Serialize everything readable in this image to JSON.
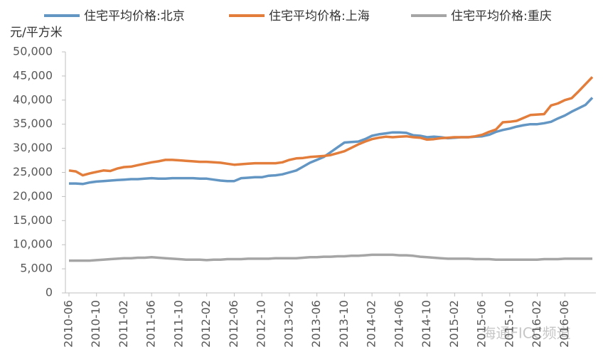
{
  "chart_data": {
    "type": "line",
    "y_label": "元/平方米",
    "watermark": "海通FICC频道",
    "categories": [
      "2010-06",
      null,
      null,
      null,
      "2010-10",
      null,
      null,
      null,
      "2011-02",
      null,
      null,
      null,
      "2011-06",
      null,
      null,
      null,
      "2011-10",
      null,
      null,
      null,
      "2012-02",
      null,
      null,
      null,
      "2012-06",
      null,
      null,
      null,
      "2012-10",
      null,
      null,
      null,
      "2013-02",
      null,
      null,
      null,
      "2013-06",
      null,
      null,
      null,
      "2013-10",
      null,
      null,
      null,
      "2014-02",
      null,
      null,
      null,
      "2014-06",
      null,
      null,
      null,
      "2014-10",
      null,
      null,
      null,
      "2015-02",
      null,
      null,
      null,
      "2015-06",
      null,
      null,
      null,
      "2015-10",
      null,
      null,
      null,
      "2016-02",
      null,
      null,
      null,
      "2016-06",
      null,
      null,
      null,
      null
    ],
    "series": [
      {
        "name": "住宅平均价格:北京",
        "color": "#6496c4",
        "values": [
          22700,
          22700,
          22600,
          22900,
          23100,
          23200,
          23300,
          23400,
          23500,
          23600,
          23600,
          23700,
          23800,
          23700,
          23700,
          23800,
          23800,
          23800,
          23800,
          23700,
          23700,
          23500,
          23300,
          23200,
          23200,
          23800,
          23900,
          24000,
          24000,
          24300,
          24400,
          24600,
          25000,
          25400,
          26200,
          27000,
          27600,
          28200,
          29200,
          30200,
          31200,
          31300,
          31400,
          31900,
          32600,
          32900,
          33100,
          33300,
          33300,
          33200,
          32700,
          32600,
          32300,
          32400,
          32300,
          32100,
          32200,
          32300,
          32300,
          32400,
          32500,
          32800,
          33400,
          33800,
          34100,
          34500,
          34800,
          35000,
          35000,
          35200,
          35500,
          36200,
          36800,
          37600,
          38300,
          39000,
          40500
        ]
      },
      {
        "name": "住宅平均价格:上海",
        "color": "#e27d3c",
        "values": [
          25400,
          25200,
          24400,
          24800,
          25100,
          25400,
          25300,
          25800,
          26100,
          26200,
          26500,
          26800,
          27100,
          27300,
          27600,
          27600,
          27500,
          27400,
          27300,
          27200,
          27200,
          27100,
          27000,
          26800,
          26600,
          26700,
          26800,
          26900,
          26900,
          26900,
          26900,
          27100,
          27600,
          27900,
          28000,
          28200,
          28300,
          28400,
          28600,
          29000,
          29400,
          30100,
          30800,
          31400,
          31900,
          32200,
          32400,
          32300,
          32400,
          32500,
          32300,
          32200,
          31800,
          31900,
          32100,
          32200,
          32300,
          32300,
          32300,
          32500,
          32800,
          33400,
          33900,
          35400,
          35500,
          35700,
          36300,
          36900,
          37000,
          37100,
          38900,
          39300,
          40000,
          40400,
          41800,
          43300,
          44800
        ]
      },
      {
        "name": "住宅平均价格:重庆",
        "color": "#a5a5a5",
        "values": [
          6700,
          6700,
          6700,
          6700,
          6800,
          6900,
          7000,
          7100,
          7200,
          7200,
          7300,
          7300,
          7400,
          7300,
          7200,
          7100,
          7000,
          6900,
          6900,
          6900,
          6800,
          6900,
          6900,
          7000,
          7000,
          7000,
          7100,
          7100,
          7100,
          7100,
          7200,
          7200,
          7200,
          7200,
          7300,
          7400,
          7400,
          7500,
          7500,
          7600,
          7600,
          7700,
          7700,
          7800,
          7900,
          7900,
          7900,
          7900,
          7800,
          7800,
          7700,
          7500,
          7400,
          7300,
          7200,
          7100,
          7100,
          7100,
          7100,
          7000,
          7000,
          7000,
          6900,
          6900,
          6900,
          6900,
          6900,
          6900,
          6900,
          7000,
          7000,
          7000,
          7100,
          7100,
          7100,
          7100,
          7100
        ]
      }
    ],
    "ylim": [
      0,
      50000
    ],
    "yticks": [
      0,
      {
        "value": 5000,
        "label": "5,000"
      },
      {
        "value": 10000,
        "label": "10,000"
      },
      {
        "value": 15000,
        "label": "15,000"
      },
      {
        "value": 20000,
        "label": "20,000"
      },
      {
        "value": 25000,
        "label": "25,000"
      },
      {
        "value": 30000,
        "label": "30,000"
      },
      {
        "value": 35000,
        "label": "35,000"
      },
      {
        "value": 40000,
        "label": "40,000"
      },
      {
        "value": 45000,
        "label": "45,000"
      },
      {
        "value": 50000,
        "label": "50,000"
      }
    ],
    "legend": "top",
    "grid": false
  }
}
